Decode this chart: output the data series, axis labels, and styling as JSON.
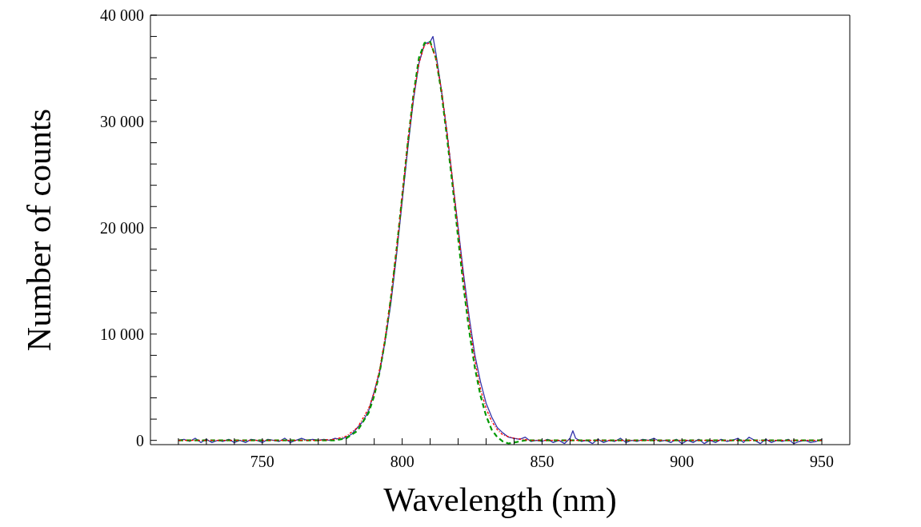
{
  "chart_data": {
    "type": "line",
    "xlabel": "Wavelength (nm)",
    "ylabel": "Number of counts",
    "xlim": [
      710,
      960
    ],
    "ylim": [
      -400,
      40000
    ],
    "xticks": [
      {
        "value": 720,
        "label": null
      },
      {
        "value": 730,
        "label": null
      },
      {
        "value": 740,
        "label": null
      },
      750,
      {
        "value": 760,
        "label": null
      },
      {
        "value": 770,
        "label": null
      },
      {
        "value": 780,
        "label": null
      },
      {
        "value": 790,
        "label": null
      },
      800,
      {
        "value": 810,
        "label": null
      },
      {
        "value": 820,
        "label": null
      },
      {
        "value": 830,
        "label": null
      },
      {
        "value": 840,
        "label": null
      },
      850,
      {
        "value": 860,
        "label": null
      },
      {
        "value": 870,
        "label": null
      },
      {
        "value": 880,
        "label": null
      },
      {
        "value": 890,
        "label": null
      },
      900,
      {
        "value": 910,
        "label": null
      },
      {
        "value": 920,
        "label": null
      },
      {
        "value": 930,
        "label": null
      },
      {
        "value": 940,
        "label": null
      },
      950
    ],
    "yticks": [
      0,
      {
        "value": 2000,
        "label": null
      },
      {
        "value": 4000,
        "label": null
      },
      {
        "value": 6000,
        "label": null
      },
      {
        "value": 8000,
        "label": null
      },
      {
        "value": 10000,
        "label": "10 000"
      },
      {
        "value": 12000,
        "label": null
      },
      {
        "value": 14000,
        "label": null
      },
      {
        "value": 16000,
        "label": null
      },
      {
        "value": 18000,
        "label": null
      },
      {
        "value": 20000,
        "label": "20 000"
      },
      {
        "value": 22000,
        "label": null
      },
      {
        "value": 24000,
        "label": null
      },
      {
        "value": 26000,
        "label": null
      },
      {
        "value": 28000,
        "label": null
      },
      {
        "value": 30000,
        "label": "30 000"
      },
      {
        "value": 32000,
        "label": null
      },
      {
        "value": 34000,
        "label": null
      },
      {
        "value": 36000,
        "label": null
      },
      {
        "value": 38000,
        "label": null
      },
      {
        "value": 40000,
        "label": "40 000"
      }
    ],
    "grid": false,
    "legend": false,
    "marker": "none",
    "series": [
      {
        "color": "#3333aa",
        "line_style": "solid",
        "x": [
          720,
          722,
          724,
          726,
          728,
          730,
          732,
          734,
          736,
          738,
          740,
          742,
          744,
          746,
          748,
          750,
          752,
          754,
          756,
          758,
          760,
          762,
          764,
          766,
          768,
          770,
          772,
          774,
          776,
          778,
          780,
          782,
          784,
          786,
          788,
          790,
          792,
          794,
          796,
          798,
          800,
          802,
          804,
          806,
          808,
          810,
          811,
          812,
          814,
          816,
          818,
          820,
          822,
          824,
          826,
          828,
          830,
          832,
          834,
          836,
          838,
          840,
          842,
          844,
          846,
          848,
          850,
          852,
          854,
          856,
          858,
          860,
          861,
          862,
          864,
          866,
          868,
          870,
          872,
          874,
          876,
          878,
          880,
          882,
          884,
          886,
          888,
          890,
          892,
          894,
          896,
          898,
          900,
          902,
          904,
          906,
          908,
          910,
          912,
          914,
          916,
          918,
          920,
          922,
          924,
          926,
          928,
          930,
          932,
          934,
          936,
          938,
          940,
          942,
          944,
          946,
          948,
          950
        ],
        "values": [
          0,
          100,
          -100,
          200,
          -200,
          100,
          -200,
          0,
          -100,
          100,
          -200,
          0,
          -200,
          100,
          0,
          -200,
          100,
          0,
          -100,
          200,
          -200,
          0,
          200,
          0,
          100,
          0,
          100,
          0,
          200,
          100,
          300,
          600,
          1200,
          1800,
          2800,
          4600,
          6500,
          9500,
          13000,
          17500,
          22500,
          27500,
          32000,
          35500,
          37300,
          37500,
          38000,
          36500,
          33000,
          29000,
          24500,
          20000,
          15500,
          11500,
          8000,
          5500,
          3500,
          2200,
          1200,
          700,
          300,
          200,
          100,
          300,
          -100,
          0,
          -100,
          100,
          -200,
          0,
          -300,
          200,
          900,
          200,
          -100,
          0,
          -300,
          100,
          -200,
          0,
          -100,
          200,
          -200,
          0,
          -100,
          100,
          0,
          200,
          -100,
          0,
          -200,
          100,
          -300,
          0,
          -200,
          100,
          -300,
          0,
          -200,
          100,
          -100,
          0,
          200,
          -200,
          300,
          0,
          -300,
          100,
          -200,
          0,
          -100,
          100,
          -300,
          -100,
          0,
          -200,
          -100,
          100
        ]
      },
      {
        "color": "#ff0000",
        "line_style": "dotted",
        "x": [
          720,
          770,
          776,
          780,
          784,
          788,
          790,
          792,
          794,
          796,
          798,
          800,
          802,
          804,
          806,
          808,
          810,
          812,
          814,
          816,
          818,
          820,
          822,
          824,
          826,
          828,
          830,
          832,
          834,
          836,
          840,
          846,
          950
        ],
        "values": [
          0,
          0,
          100,
          400,
          1200,
          3000,
          4500,
          6800,
          9800,
          13500,
          18000,
          23000,
          28000,
          32300,
          35500,
          37200,
          37400,
          36000,
          33000,
          29000,
          24500,
          19800,
          15000,
          11000,
          7500,
          4800,
          3000,
          1800,
          1000,
          500,
          200,
          0,
          0
        ]
      },
      {
        "color": "#009900",
        "line_style": "dashed",
        "x": [
          720,
          776,
          780,
          784,
          788,
          790,
          792,
          794,
          796,
          798,
          800,
          802,
          804,
          806,
          808,
          810,
          812,
          814,
          816,
          818,
          820,
          822,
          824,
          826,
          828,
          830,
          832,
          834,
          836,
          838,
          840,
          844,
          950
        ],
        "values": [
          0,
          0,
          200,
          900,
          2600,
          4200,
          6500,
          9600,
          13500,
          18000,
          23000,
          28000,
          32500,
          36000,
          37400,
          37500,
          36000,
          32800,
          28500,
          24000,
          19000,
          14300,
          10200,
          6800,
          4200,
          2300,
          1000,
          300,
          -100,
          -300,
          -200,
          0,
          0
        ]
      }
    ]
  }
}
